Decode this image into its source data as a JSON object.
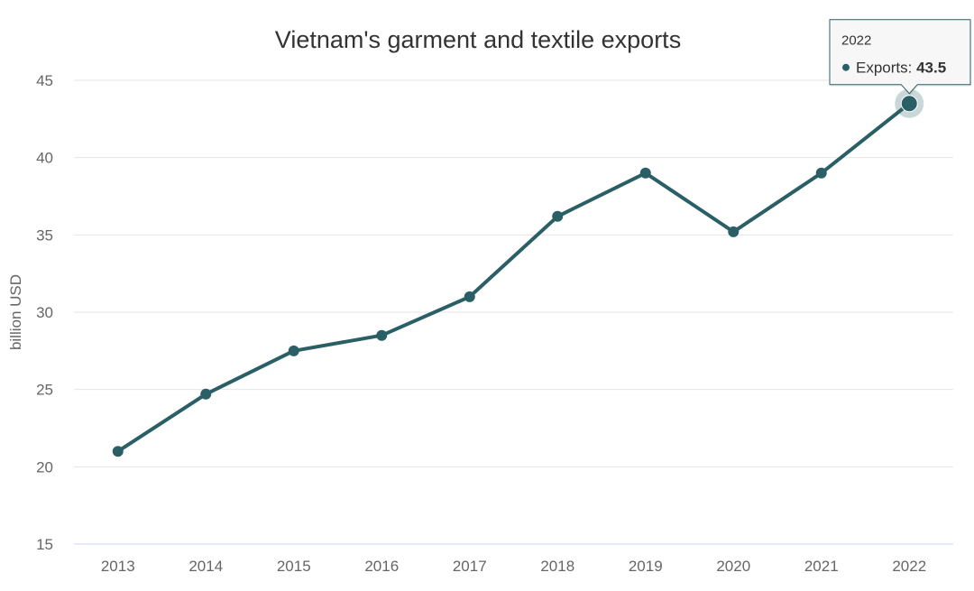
{
  "chart_data": {
    "type": "line",
    "title": "Vietnam's garment and textile exports",
    "ylabel": "billion USD",
    "xlabel": "",
    "ylim": [
      15,
      45
    ],
    "yticks": [
      15,
      20,
      25,
      30,
      35,
      40,
      45
    ],
    "grid": true,
    "categories": [
      "2013",
      "2014",
      "2015",
      "2016",
      "2017",
      "2018",
      "2019",
      "2020",
      "2021",
      "2022"
    ],
    "series": [
      {
        "name": "Exports",
        "color": "#2b5f66",
        "values": [
          21.0,
          24.7,
          27.5,
          28.5,
          31.0,
          36.2,
          39.0,
          35.2,
          39.0,
          43.5
        ]
      }
    ],
    "tooltip": {
      "category": "2022",
      "series_name": "Exports",
      "label": "Exports: ",
      "value": "43.5"
    }
  }
}
